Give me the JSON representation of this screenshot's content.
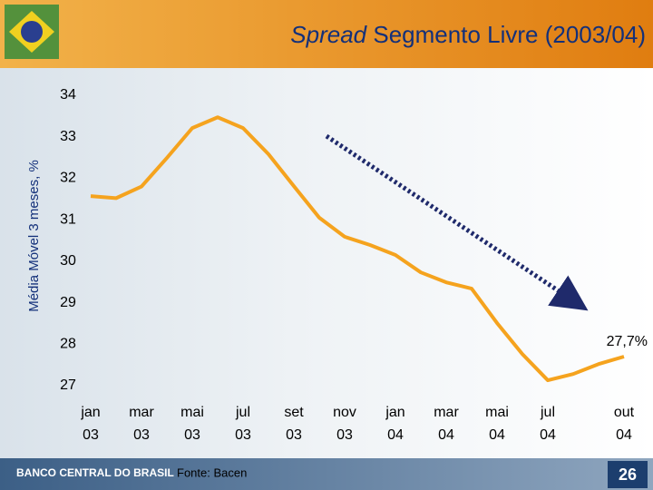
{
  "chart_data": {
    "type": "line",
    "title_emphasis": "Spread",
    "title": "Segmento Livre (2003/04)",
    "y_label": "Média Móvel 3 meses, %",
    "categories": [
      "jan\n03",
      null,
      "mar\n03",
      null,
      "mai\n03",
      null,
      "jul\n03",
      null,
      "set\n03",
      null,
      "nov\n03",
      null,
      "jan\n04",
      null,
      "mar\n04",
      null,
      "mai\n04",
      null,
      "jul\n04",
      null,
      null,
      "out\n04"
    ],
    "values": [
      31.57,
      31.52,
      31.8,
      32.49,
      33.21,
      33.47,
      33.21,
      32.58,
      31.81,
      31.05,
      30.59,
      30.39,
      30.15,
      29.73,
      29.49,
      29.34,
      28.51,
      27.76,
      27.13,
      27.28,
      27.52,
      27.7
    ],
    "value_labels": [
      null,
      null,
      null,
      null,
      null,
      null,
      null,
      null,
      null,
      null,
      null,
      null,
      null,
      null,
      null,
      null,
      null,
      null,
      null,
      null,
      null,
      "27,7%"
    ],
    "color": "#f5a31e",
    "ylim": [
      27,
      34
    ],
    "yticks": [
      27,
      28,
      29,
      30,
      31,
      32,
      33,
      34
    ],
    "grid": false
  },
  "footer": {
    "brand": "BANCO CENTRAL DO BRASIL",
    "source": "Fonte: Bacen",
    "page": "26"
  }
}
